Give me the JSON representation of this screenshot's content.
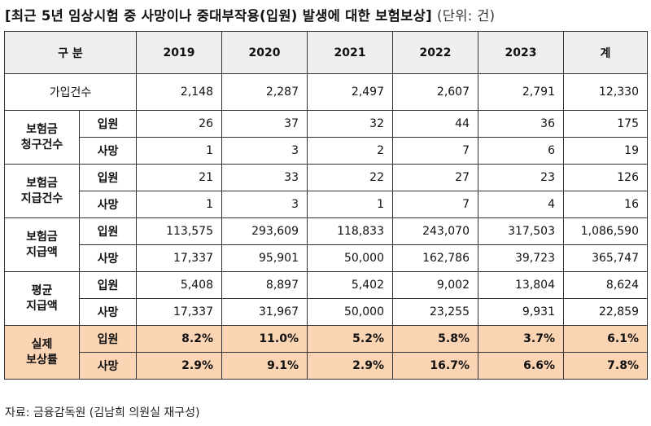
{
  "title": "[최근 5년 임상시험 중 사망이나 중대부작용(입원) 발생에 대한 보험보상]",
  "unit": "(단위: 건)",
  "headers": [
    "구 분",
    "2019",
    "2020",
    "2021",
    "2022",
    "2023",
    "계"
  ],
  "rows": {
    "enroll": {
      "label": "가입건수",
      "values": [
        "2,148",
        "2,287",
        "2,497",
        "2,607",
        "2,791",
        "12,330"
      ]
    },
    "claim": {
      "label_line1": "보험금",
      "label_line2": "청구건수",
      "admit": {
        "label": "입원",
        "values": [
          "26",
          "37",
          "32",
          "44",
          "36",
          "175"
        ]
      },
      "death": {
        "label": "사망",
        "values": [
          "1",
          "3",
          "2",
          "7",
          "6",
          "19"
        ]
      }
    },
    "paid_count": {
      "label_line1": "보험금",
      "label_line2": "지급건수",
      "admit": {
        "label": "입원",
        "values": [
          "21",
          "33",
          "22",
          "27",
          "23",
          "126"
        ]
      },
      "death": {
        "label": "사망",
        "values": [
          "1",
          "3",
          "1",
          "7",
          "4",
          "16"
        ]
      }
    },
    "paid_amount": {
      "label_line1": "보험금",
      "label_line2": "지급액",
      "admit": {
        "label": "입원",
        "values": [
          "113,575",
          "293,609",
          "118,833",
          "243,070",
          "317,503",
          "1,086,590"
        ]
      },
      "death": {
        "label": "사망",
        "values": [
          "17,337",
          "95,901",
          "50,000",
          "162,786",
          "39,723",
          "365,747"
        ]
      }
    },
    "avg_amount": {
      "label_line1": "평균",
      "label_line2": "지급액",
      "admit": {
        "label": "입원",
        "values": [
          "5,408",
          "8,897",
          "5,402",
          "9,002",
          "13,804",
          "8,624"
        ]
      },
      "death": {
        "label": "사망",
        "values": [
          "17,337",
          "31,967",
          "50,000",
          "23,255",
          "9,931",
          "22,859"
        ]
      }
    },
    "rate": {
      "label_line1": "실제",
      "label_line2": "보상률",
      "admit": {
        "label": "입원",
        "values": [
          "8.2%",
          "11.0%",
          "5.2%",
          "5.8%",
          "3.7%",
          "6.1%"
        ]
      },
      "death": {
        "label": "사망",
        "values": [
          "2.9%",
          "9.1%",
          "2.9%",
          "16.7%",
          "6.6%",
          "7.8%"
        ]
      }
    }
  },
  "colors": {
    "header_bg": "#efefef",
    "highlight_bg": "#fbd4b4"
  },
  "footer": "자료: 금융감독원 (김남희 의원실 재구성)"
}
